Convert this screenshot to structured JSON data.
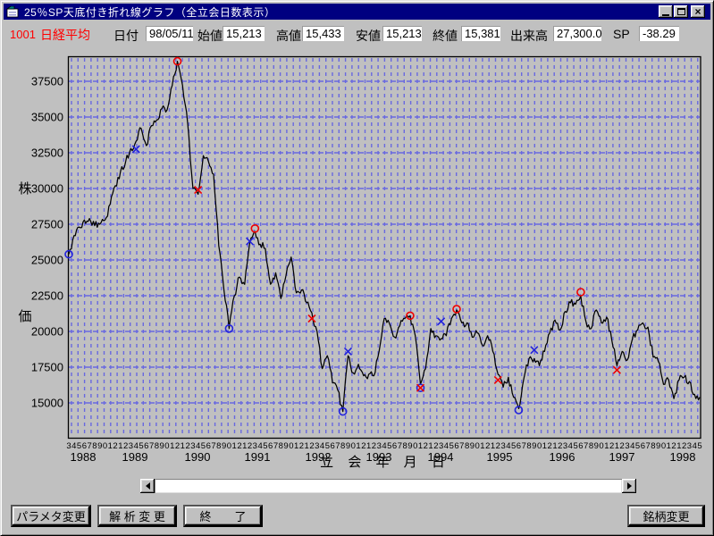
{
  "window": {
    "title": "25％SP天底付き折れ線グラフ（全立会日数表示）"
  },
  "icons": {
    "close": "×"
  },
  "info": {
    "code": "1001",
    "name": "日経平均",
    "fields": [
      {
        "label": "日付",
        "value": "98/05/11"
      },
      {
        "label": "始値",
        "value": "15,213"
      },
      {
        "label": "高値",
        "value": "15,433"
      },
      {
        "label": "安値",
        "value": "15,213"
      },
      {
        "label": "終値",
        "value": "15,381"
      },
      {
        "label": "出来高",
        "value": "27,300.0"
      },
      {
        "label": "SP",
        "value": "-38.29"
      }
    ]
  },
  "chart_data": {
    "type": "line",
    "title": "25%SP天底付き折れ線グラフ",
    "ylabel": "株価",
    "xlabel": "立 会 年 月 日",
    "ylim": [
      13100,
      39200
    ],
    "yticks": [
      15000,
      17500,
      20000,
      22500,
      25000,
      27500,
      30000,
      32500,
      35000,
      37500
    ],
    "grid": true,
    "start_month": "1988-03",
    "end_month": "1998-05",
    "year_labels": [
      1988,
      1989,
      1990,
      1991,
      1992,
      1993,
      1994,
      1995,
      1996,
      1997,
      1998
    ],
    "series": [
      {
        "name": "日経平均 終値",
        "values": [
          25400,
          26700,
          27300,
          27800,
          27900,
          27400,
          27500,
          27800,
          28900,
          30200,
          31200,
          31900,
          32800,
          33300,
          34200,
          33000,
          34400,
          34800,
          35600,
          35500,
          37200,
          38900,
          37200,
          34500,
          30000,
          29600,
          32300,
          31900,
          31000,
          26000,
          22900,
          20200,
          22500,
          23800,
          23300,
          26200,
          27000,
          26100,
          25800,
          23300,
          24100,
          22300,
          23900,
          25200,
          22700,
          22900,
          22000,
          21300,
          20000,
          17400,
          18300,
          16400,
          15900,
          14400,
          18300,
          17100,
          17700,
          16900,
          17000,
          16900,
          18600,
          20900,
          20550,
          19600,
          20400,
          20900,
          21100,
          19700,
          16300,
          17400,
          20200,
          19700,
          19500,
          19700,
          20900,
          21500,
          20600,
          20600,
          19600,
          19900,
          19000,
          19700,
          18600,
          17000,
          16100,
          16800,
          15400,
          14600,
          16700,
          18100,
          18100,
          17600,
          18600,
          19900,
          20800,
          20100,
          21400,
          22000,
          21900,
          22500,
          20700,
          20200,
          21500,
          20600,
          21000,
          19400,
          17600,
          18600,
          18000,
          19500,
          20100,
          20600,
          20300,
          18200,
          17900,
          16300,
          16600,
          15300,
          16600,
          16800,
          16500,
          15600,
          15400
        ]
      }
    ],
    "markers": [
      {
        "month": "1988-03",
        "value": 25400,
        "shape": "circle",
        "color": "blue"
      },
      {
        "month": "1989-04",
        "value": 32750,
        "shape": "x",
        "color": "blue"
      },
      {
        "month": "1989-12",
        "value": 38900,
        "shape": "circle",
        "color": "red"
      },
      {
        "month": "1990-04",
        "value": 29900,
        "shape": "x",
        "color": "red"
      },
      {
        "month": "1990-10",
        "value": 20200,
        "shape": "circle",
        "color": "blue"
      },
      {
        "month": "1991-02",
        "value": 26300,
        "shape": "x",
        "color": "blue"
      },
      {
        "month": "1991-03",
        "value": 27200,
        "shape": "circle",
        "color": "red"
      },
      {
        "month": "1992-02",
        "value": 20900,
        "shape": "x",
        "color": "red"
      },
      {
        "month": "1992-08",
        "value": 14400,
        "shape": "circle",
        "color": "blue"
      },
      {
        "month": "1992-09",
        "value": 18600,
        "shape": "x",
        "color": "blue"
      },
      {
        "month": "1993-09",
        "value": 21100,
        "shape": "circle",
        "color": "red"
      },
      {
        "month": "1993-11",
        "value": 16050,
        "shape": "circle",
        "color": "blue"
      },
      {
        "month": "1993-11",
        "value": 16050,
        "shape": "x",
        "color": "red"
      },
      {
        "month": "1994-03",
        "value": 20700,
        "shape": "x",
        "color": "blue"
      },
      {
        "month": "1994-06",
        "value": 21560,
        "shape": "circle",
        "color": "red"
      },
      {
        "month": "1995-02",
        "value": 16600,
        "shape": "x",
        "color": "red"
      },
      {
        "month": "1995-06",
        "value": 14500,
        "shape": "circle",
        "color": "blue"
      },
      {
        "month": "1995-09",
        "value": 18700,
        "shape": "x",
        "color": "blue"
      },
      {
        "month": "1996-06",
        "value": 22750,
        "shape": "circle",
        "color": "red"
      },
      {
        "month": "1997-01",
        "value": 17300,
        "shape": "x",
        "color": "red"
      }
    ],
    "colors": {
      "line": "#000000",
      "grid": "#6868e0",
      "marker_red": "#f00000",
      "marker_blue": "#2222dd"
    }
  },
  "footer": {
    "param_label": "パラメタ変更",
    "analysis_label": "解 析 変 更",
    "exit_label": "終　　了",
    "symbol_label": "銘柄変更"
  }
}
